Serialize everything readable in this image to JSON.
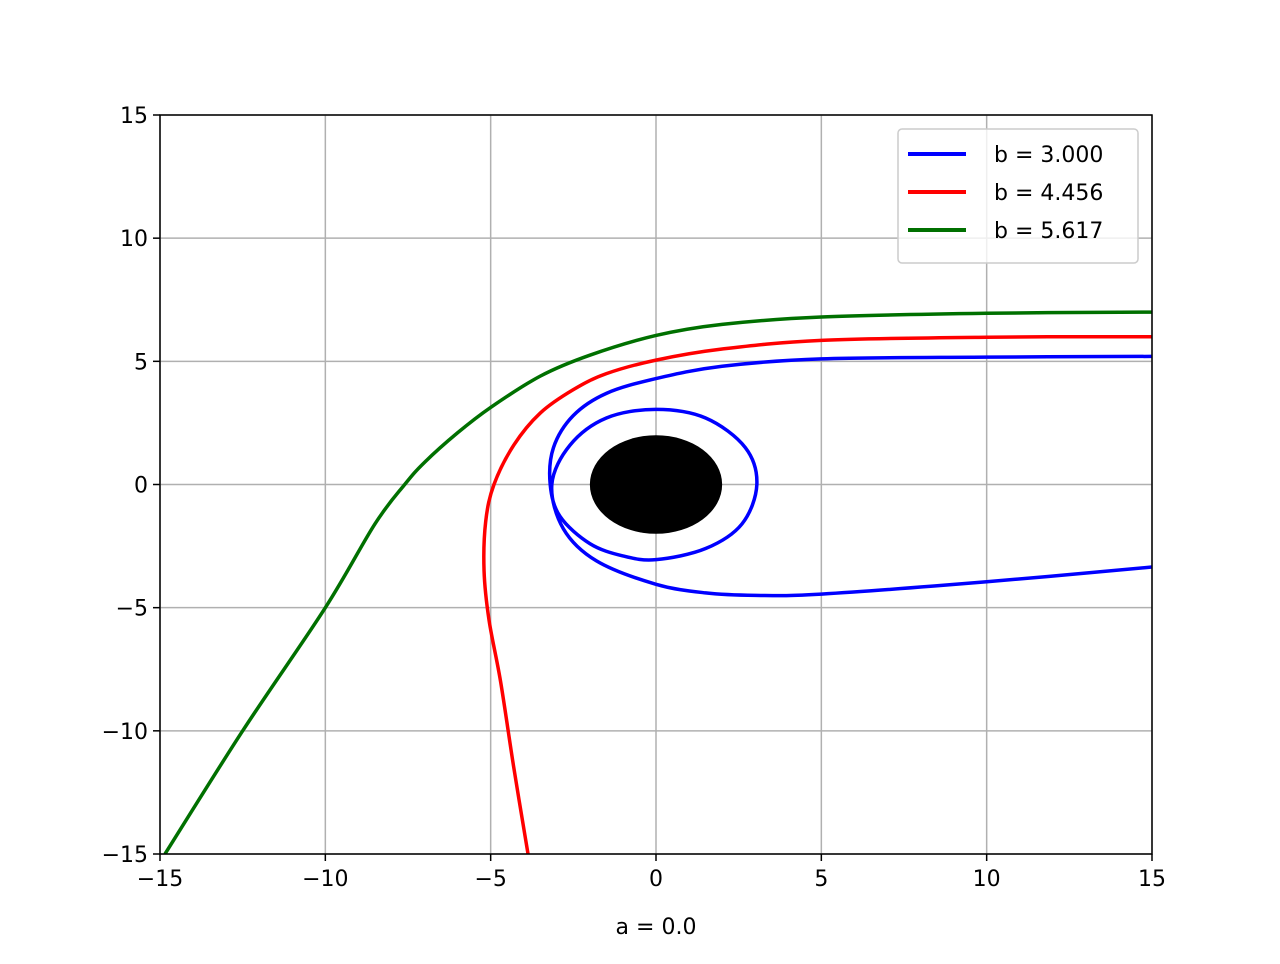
{
  "chart_data": {
    "type": "line",
    "xlabel": "a = 0.0",
    "xlim": [
      -15,
      15
    ],
    "ylim": [
      -15,
      15
    ],
    "xticks": [
      {
        "value": -15,
        "label": "−15"
      },
      {
        "value": -10,
        "label": "−10"
      },
      {
        "value": -5,
        "label": "−5"
      },
      0,
      5,
      10,
      15
    ],
    "yticks": [
      {
        "value": -15,
        "label": "−15"
      },
      {
        "value": -10,
        "label": "−10"
      },
      {
        "value": -5,
        "label": "−5"
      },
      0,
      5,
      10,
      15
    ],
    "grid": true,
    "legend": "upper right",
    "disk": {
      "x": 0,
      "y": 0,
      "r": 2,
      "color": "#000000"
    },
    "series": [
      {
        "name": "b = 3.000",
        "color": "#0000ff",
        "x": [
          15,
          10,
          5,
          2,
          0,
          -1.5,
          -2.5,
          -3.1,
          -3.2,
          -2.9,
          -2,
          -1,
          0,
          1.5,
          2.6,
          3.05,
          2.7,
          1.5,
          0,
          -1.5,
          -2.6,
          -3.15,
          -2.8,
          -1.8,
          0,
          1.5,
          3,
          5,
          10,
          15
        ],
        "values": [
          5.2,
          5.17,
          5.1,
          4.8,
          4.3,
          3.7,
          2.8,
          1.5,
          0,
          -1.3,
          -2.4,
          -2.9,
          -3.05,
          -2.6,
          -1.6,
          0,
          1.5,
          2.7,
          3.05,
          2.7,
          1.6,
          0,
          -1.8,
          -3.1,
          -4.05,
          -4.4,
          -4.5,
          -4.45,
          -3.95,
          -3.35
        ]
      },
      {
        "name": "b = 4.456",
        "color": "#ff0000",
        "x": [
          15,
          10,
          5,
          2,
          0,
          -1.5,
          -2.5,
          -3.5,
          -4.3,
          -4.9,
          -5.15,
          -5.2,
          -5.05,
          -4.7,
          -4.3,
          -3.87
        ],
        "values": [
          6.0,
          5.98,
          5.85,
          5.5,
          5.05,
          4.5,
          3.85,
          2.9,
          1.6,
          0,
          -1.5,
          -3.5,
          -5.5,
          -8,
          -11.5,
          -15
        ]
      },
      {
        "name": "b = 5.617",
        "color": "#007000",
        "x": [
          15,
          10,
          5,
          2,
          0,
          -2,
          -3.5,
          -5,
          -6,
          -7,
          -7.6,
          -8.5,
          -10,
          -12.5,
          -14.85
        ],
        "values": [
          7.0,
          6.95,
          6.8,
          6.5,
          6.05,
          5.25,
          4.4,
          3.13,
          2.1,
          0.9,
          0,
          -1.6,
          -5,
          -10,
          -15
        ]
      }
    ]
  }
}
